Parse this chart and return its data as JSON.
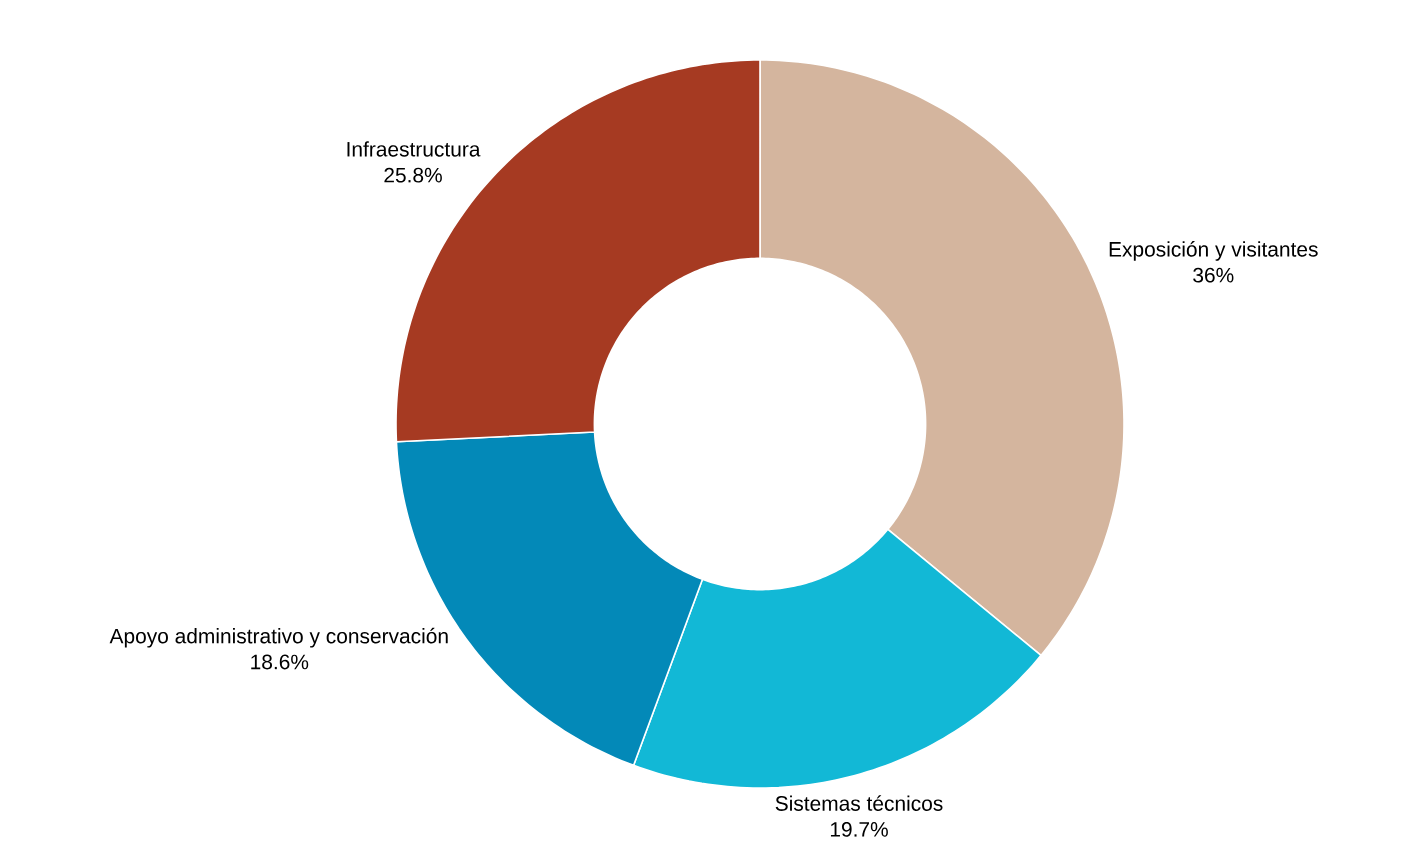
{
  "chart_data": {
    "type": "donut",
    "categories": [
      "Exposición y visitantes",
      "Sistemas técnicos",
      "Apoyo administrativo y conservación",
      "Infraestructura"
    ],
    "values": [
      36,
      19.7,
      18.6,
      25.8
    ],
    "value_labels": [
      "36%",
      "19.7%",
      "18.6%",
      "25.8%"
    ],
    "colors": [
      "#d4b59e",
      "#12b8d6",
      "#0389b8",
      "#a63a22"
    ]
  }
}
